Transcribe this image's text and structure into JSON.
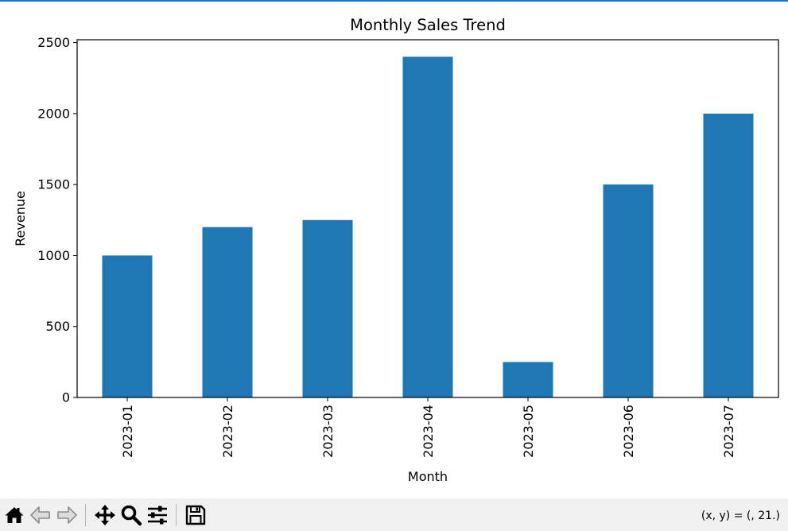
{
  "window": {
    "accent_color": "#1a73c8"
  },
  "chart_data": {
    "type": "bar",
    "title": "Monthly Sales Trend",
    "xlabel": "Month",
    "ylabel": "Revenue",
    "categories": [
      "2023-01",
      "2023-02",
      "2023-03",
      "2023-04",
      "2023-05",
      "2023-06",
      "2023-07"
    ],
    "values": [
      1000,
      1200,
      1250,
      2400,
      250,
      1500,
      2000
    ],
    "ylim": [
      0,
      2520
    ],
    "yticks": [
      0,
      500,
      1000,
      1500,
      2000,
      2500
    ],
    "bar_color": "#1f77b4",
    "grid": false,
    "legend": "none"
  },
  "toolbar": {
    "buttons": [
      {
        "name": "home",
        "icon": "home-icon"
      },
      {
        "name": "back",
        "icon": "back-arrow-icon"
      },
      {
        "name": "forward",
        "icon": "forward-arrow-icon"
      },
      {
        "name": "pan",
        "icon": "move-icon"
      },
      {
        "name": "zoom",
        "icon": "zoom-icon"
      },
      {
        "name": "configure",
        "icon": "sliders-icon"
      },
      {
        "name": "save",
        "icon": "save-icon"
      }
    ],
    "coords_text": "(x, y) = (, 21.)"
  }
}
